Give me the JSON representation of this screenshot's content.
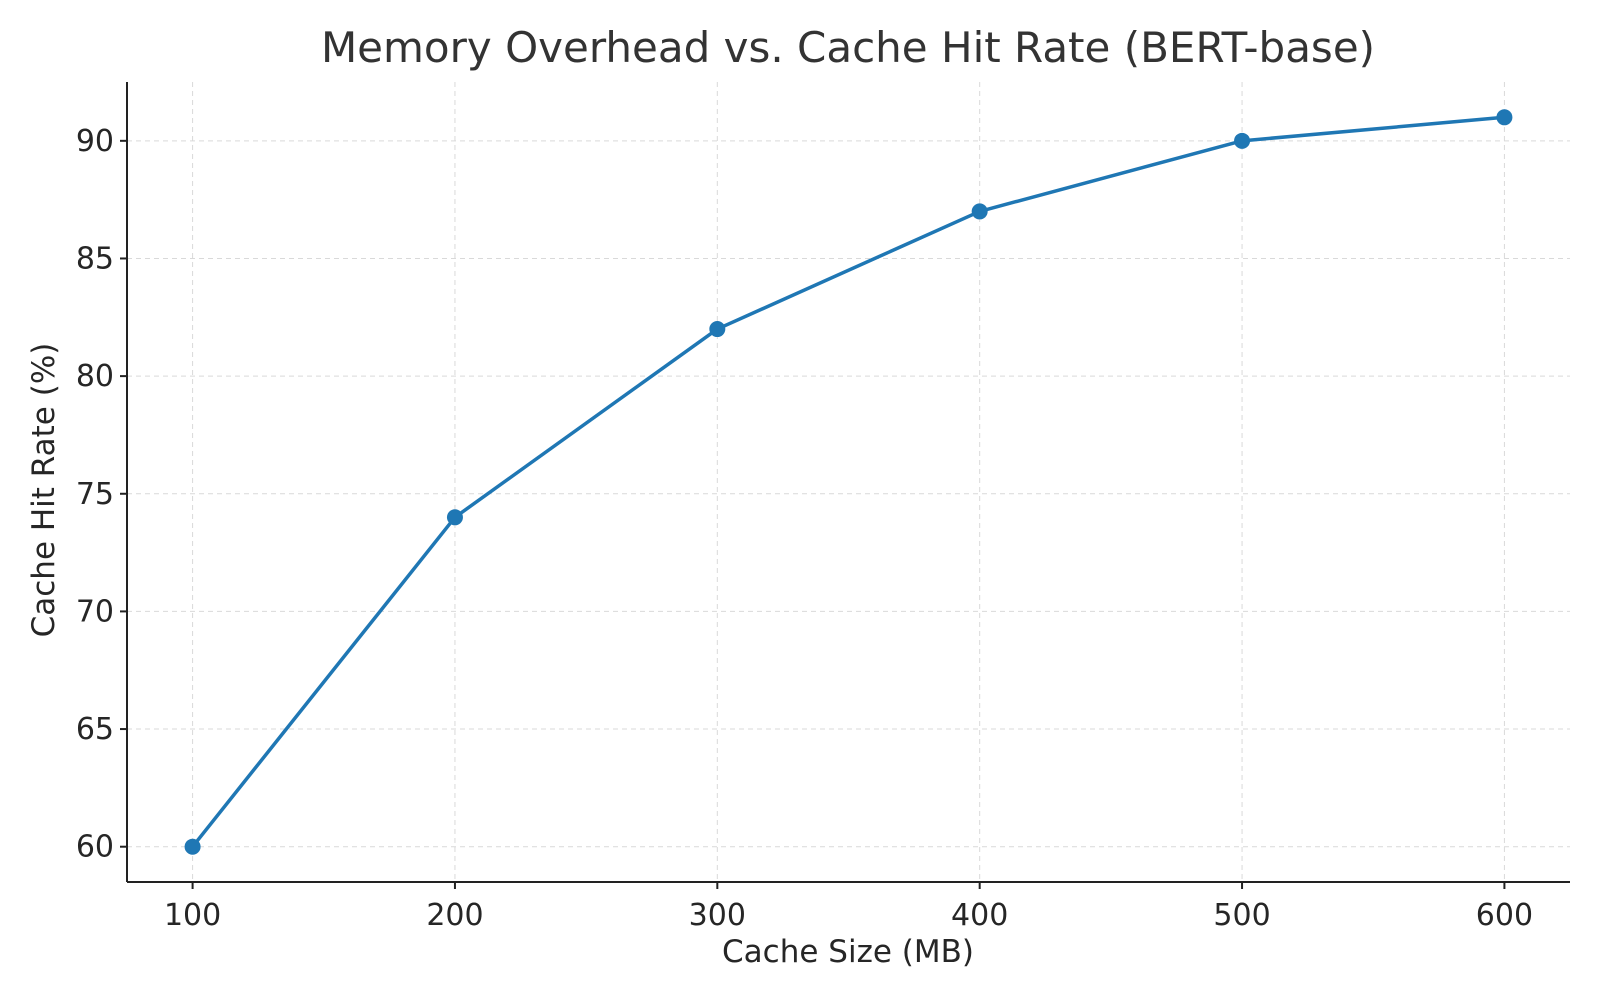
{
  "chart_data": {
    "type": "line",
    "title": "Memory Overhead vs. Cache Hit Rate (BERT-base)",
    "xlabel": "Cache Size (MB)",
    "ylabel": "Cache Hit Rate (%)",
    "x": [
      100,
      200,
      300,
      400,
      500,
      600
    ],
    "xlim": [
      75,
      625
    ],
    "ylim": [
      58.5,
      92.5
    ],
    "xticks": [
      100,
      200,
      300,
      400,
      500,
      600
    ],
    "yticks": [
      60,
      65,
      70,
      75,
      80,
      85,
      90
    ],
    "grid": true,
    "legend": "none",
    "series": [
      {
        "values": [
          60,
          74,
          82,
          87,
          90,
          91
        ],
        "color": "#1f77b4",
        "marker": "circle"
      }
    ]
  }
}
